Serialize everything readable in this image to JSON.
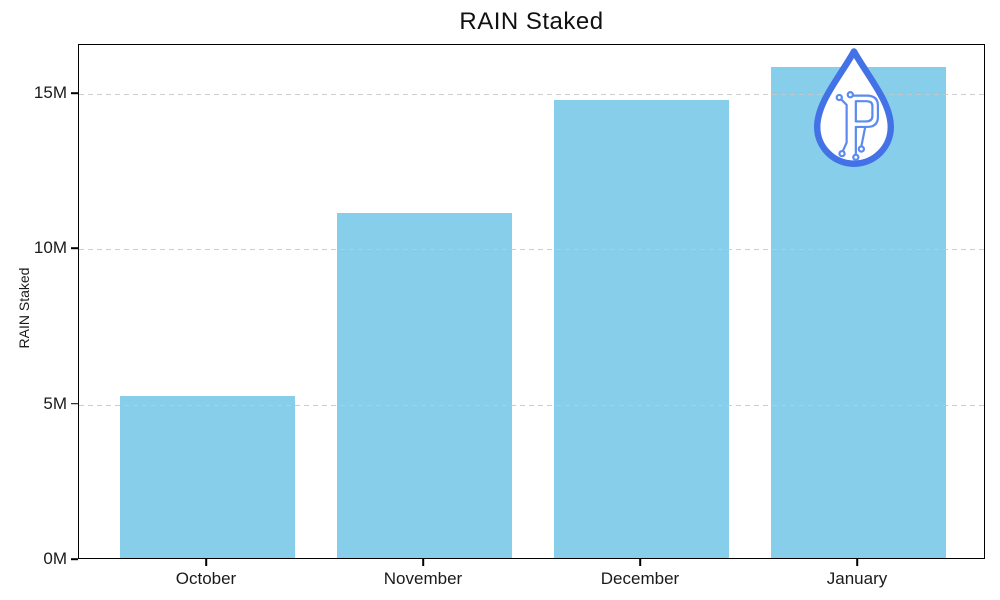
{
  "page": {
    "background_color": "#ffffff"
  },
  "chart_data": {
    "type": "bar",
    "title": "RAIN Staked",
    "xlabel": "",
    "ylabel": "RAIN Staked",
    "categories": [
      "October",
      "November",
      "December",
      "January"
    ],
    "values": [
      5200000,
      11100000,
      14750000,
      15800000
    ],
    "values_millions": [
      5.2,
      11.1,
      14.75,
      15.8
    ],
    "bar_color": "#87CEEB",
    "ylim": [
      0,
      16580000
    ],
    "yticks": [
      {
        "value": 0,
        "label": "0M"
      },
      {
        "value": 5000000,
        "label": "5M"
      },
      {
        "value": 10000000,
        "label": "10M"
      },
      {
        "value": 15000000,
        "label": "15M"
      }
    ],
    "grid": {
      "horizontal": true,
      "style": "dashed",
      "color": "#c7c7c7",
      "above_bars": true
    },
    "legend": "none",
    "axis_color": "#000000",
    "text_color": "#1a1a1a",
    "title_color": "#111111"
  },
  "logo": {
    "name": "rain-circuit-droplet",
    "droplet_outline_color": "#4372e6",
    "circuit_color": "#5b8af0",
    "fill_color": "#ffffff"
  }
}
